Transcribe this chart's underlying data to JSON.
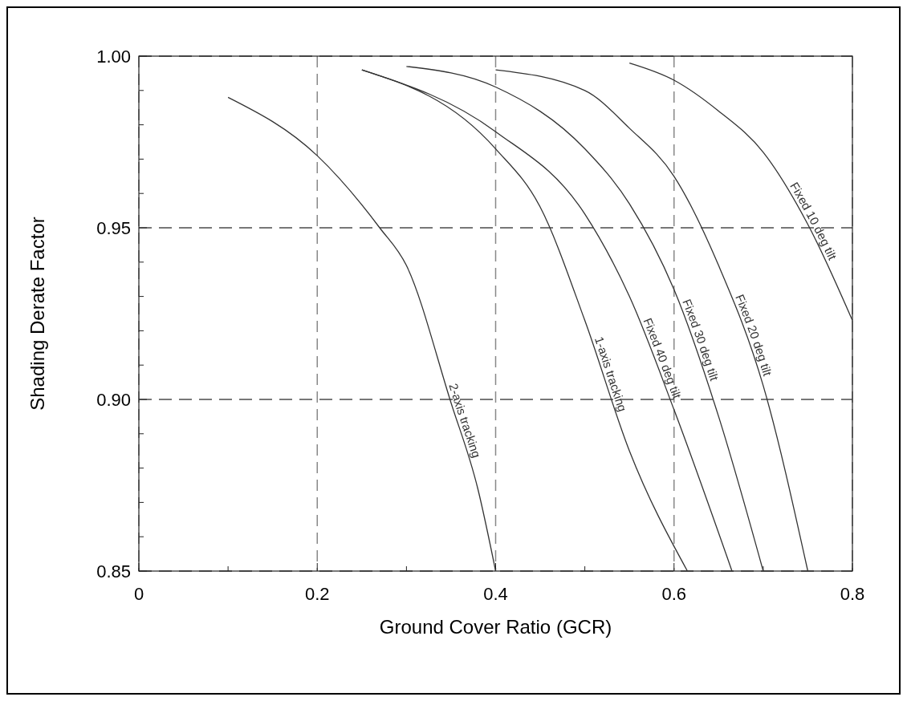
{
  "chart_data": {
    "type": "line",
    "xlabel": "Ground Cover Ratio (GCR)",
    "ylabel": "Shading Derate Factor",
    "xlim": [
      0,
      0.8
    ],
    "ylim": [
      0.85,
      1.0
    ],
    "xticks": [
      0,
      {
        "value": 0.1,
        "label": null
      },
      0.2,
      {
        "value": 0.3,
        "label": null
      },
      0.4,
      {
        "value": 0.5,
        "label": null
      },
      0.6,
      {
        "value": 0.7,
        "label": null
      },
      0.8
    ],
    "yticks": [
      {
        "value": 0.85,
        "label": "0.85"
      },
      {
        "value": 0.86,
        "label": null
      },
      {
        "value": 0.87,
        "label": null
      },
      {
        "value": 0.88,
        "label": null
      },
      {
        "value": 0.89,
        "label": null
      },
      {
        "value": 0.9,
        "label": "0.90"
      },
      {
        "value": 0.91,
        "label": null
      },
      {
        "value": 0.92,
        "label": null
      },
      {
        "value": 0.93,
        "label": null
      },
      {
        "value": 0.94,
        "label": null
      },
      {
        "value": 0.95,
        "label": "0.95"
      },
      {
        "value": 0.96,
        "label": null
      },
      {
        "value": 0.97,
        "label": null
      },
      {
        "value": 0.98,
        "label": null
      },
      {
        "value": 0.99,
        "label": null
      },
      {
        "value": 1.0,
        "label": "1.00"
      }
    ],
    "grid": true,
    "marker": "none",
    "line_style": "solid",
    "series": [
      {
        "name": "2-axis tracking",
        "color": "#333333",
        "x": [
          0.1,
          0.2,
          0.27,
          0.3,
          0.35,
          0.38,
          0.4
        ],
        "values": [
          0.988,
          0.971,
          0.95,
          0.939,
          0.899,
          0.874,
          0.85
        ]
      },
      {
        "name": "1-axis tracking",
        "color": "#333333",
        "x": [
          0.25,
          0.4,
          0.45,
          0.5,
          0.55,
          0.615
        ],
        "values": [
          0.996,
          0.973,
          0.956,
          0.923,
          0.885,
          0.85
        ]
      },
      {
        "name": "Fixed 40 deg tilt",
        "color": "#333333",
        "x": [
          0.25,
          0.4,
          0.5,
          0.55,
          0.6,
          0.665
        ],
        "values": [
          0.996,
          0.978,
          0.954,
          0.93,
          0.897,
          0.85
        ]
      },
      {
        "name": "Fixed 30 deg tilt",
        "color": "#333333",
        "x": [
          0.3,
          0.4,
          0.5,
          0.55,
          0.6,
          0.65,
          0.7
        ],
        "values": [
          0.997,
          0.991,
          0.973,
          0.957,
          0.932,
          0.895,
          0.85
        ]
      },
      {
        "name": "Fixed 20 deg tilt",
        "color": "#333333",
        "x": [
          0.4,
          0.5,
          0.55,
          0.6,
          0.65,
          0.7,
          0.75
        ],
        "values": [
          0.996,
          0.99,
          0.979,
          0.965,
          0.939,
          0.904,
          0.85
        ]
      },
      {
        "name": "Fixed 10 deg tilt",
        "color": "#333333",
        "x": [
          0.55,
          0.6,
          0.65,
          0.7,
          0.75,
          0.8
        ],
        "values": [
          0.998,
          0.993,
          0.984,
          0.972,
          0.951,
          0.923
        ]
      }
    ]
  }
}
